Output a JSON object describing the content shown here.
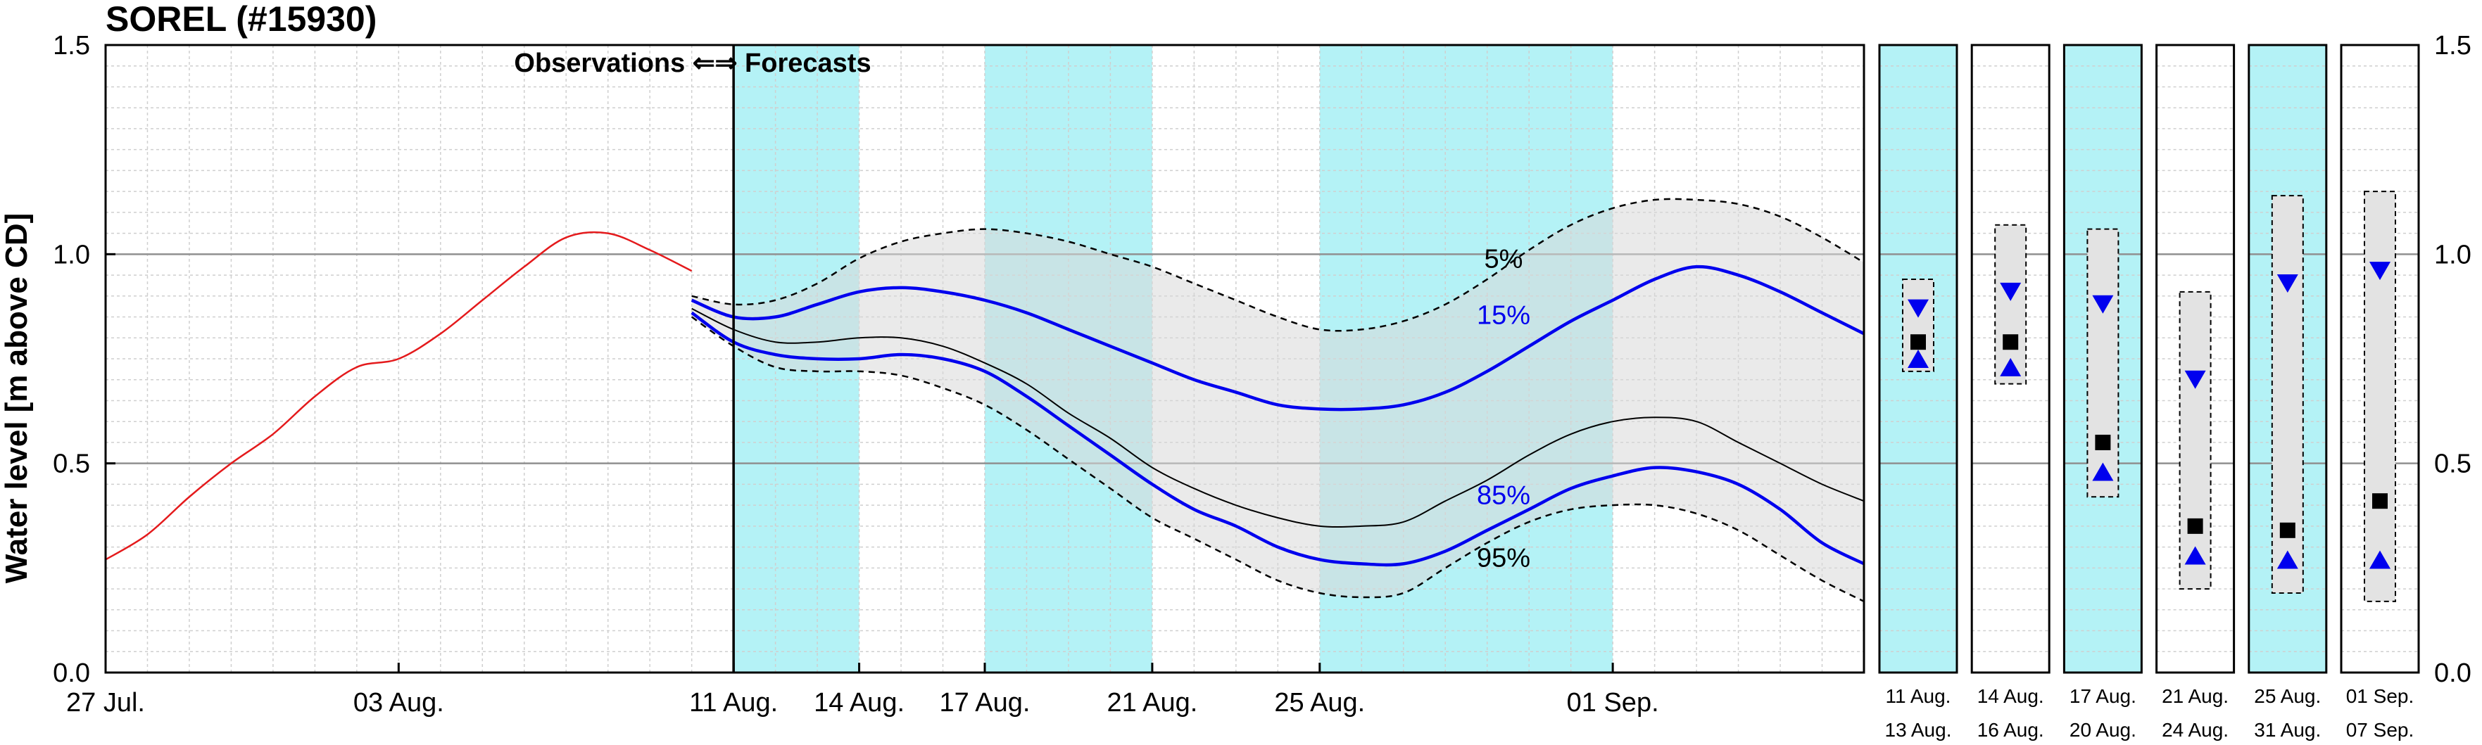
{
  "chart_data": {
    "type": "line",
    "title": "SOREL (#15930)",
    "ylabel": "Water level [m above CD]",
    "ylim": [
      0.0,
      1.5
    ],
    "yticks": [
      "0.0",
      "0.5",
      "1.0",
      "1.5"
    ],
    "x_start": "2024-07-27",
    "x_end": "2024-09-07",
    "xtick_labels": [
      {
        "date": "2024-07-27",
        "label": "27 Jul."
      },
      {
        "date": "2024-08-03",
        "label": "03 Aug."
      },
      {
        "date": "2024-08-11",
        "label": "11 Aug."
      },
      {
        "date": "2024-08-14",
        "label": "14 Aug."
      },
      {
        "date": "2024-08-17",
        "label": "17 Aug."
      },
      {
        "date": "2024-08-21",
        "label": "21 Aug."
      },
      {
        "date": "2024-08-25",
        "label": "25 Aug."
      },
      {
        "date": "2024-09-01",
        "label": "01 Sep."
      }
    ],
    "split_date": "2024-08-11",
    "split_label": "Observations ⇐⇒ Forecasts",
    "shaded_bands": [
      {
        "start": "2024-08-11",
        "end": "2024-08-14"
      },
      {
        "start": "2024-08-17",
        "end": "2024-08-21"
      },
      {
        "start": "2024-08-25",
        "end": "2024-09-01"
      }
    ],
    "band_color": "#b4f2f6",
    "grid": true,
    "observations": {
      "color": "#e41a1c",
      "x": [
        "2024-07-27",
        "2024-07-28",
        "2024-07-29",
        "2024-07-30",
        "2024-07-31",
        "2024-08-01",
        "2024-08-02",
        "2024-08-03",
        "2024-08-04",
        "2024-08-05",
        "2024-08-06",
        "2024-08-07",
        "2024-08-08",
        "2024-08-09",
        "2024-08-10"
      ],
      "y": [
        0.27,
        0.33,
        0.42,
        0.5,
        0.57,
        0.66,
        0.73,
        0.75,
        0.81,
        0.89,
        0.97,
        1.04,
        1.05,
        1.01,
        0.96
      ]
    },
    "forecast_x": [
      "2024-08-10",
      "2024-08-11",
      "2024-08-12",
      "2024-08-13",
      "2024-08-14",
      "2024-08-15",
      "2024-08-16",
      "2024-08-17",
      "2024-08-18",
      "2024-08-19",
      "2024-08-20",
      "2024-08-21",
      "2024-08-22",
      "2024-08-23",
      "2024-08-24",
      "2024-08-25",
      "2024-08-26",
      "2024-08-27",
      "2024-08-28",
      "2024-08-29",
      "2024-08-30",
      "2024-08-31",
      "2024-09-01",
      "2024-09-02",
      "2024-09-03",
      "2024-09-04",
      "2024-09-05",
      "2024-09-06",
      "2024-09-07"
    ],
    "series": [
      {
        "name": "5%",
        "style": "dashed",
        "color": "#000000",
        "values": [
          0.9,
          0.88,
          0.89,
          0.93,
          0.99,
          1.03,
          1.05,
          1.06,
          1.05,
          1.03,
          1.0,
          0.97,
          0.93,
          0.89,
          0.85,
          0.82,
          0.82,
          0.84,
          0.88,
          0.94,
          1.01,
          1.07,
          1.11,
          1.13,
          1.13,
          1.12,
          1.09,
          1.04,
          0.98
        ]
      },
      {
        "name": "15%",
        "style": "solid",
        "color": "#0000ee",
        "values": [
          0.89,
          0.85,
          0.85,
          0.88,
          0.91,
          0.92,
          0.91,
          0.89,
          0.86,
          0.82,
          0.78,
          0.74,
          0.7,
          0.67,
          0.64,
          0.63,
          0.63,
          0.64,
          0.67,
          0.72,
          0.78,
          0.84,
          0.89,
          0.94,
          0.97,
          0.95,
          0.91,
          0.86,
          0.81
        ]
      },
      {
        "name": "",
        "style": "solid",
        "color": "#000000",
        "values": [
          0.87,
          0.82,
          0.79,
          0.79,
          0.8,
          0.8,
          0.78,
          0.74,
          0.69,
          0.62,
          0.56,
          0.49,
          0.44,
          0.4,
          0.37,
          0.35,
          0.35,
          0.36,
          0.41,
          0.46,
          0.52,
          0.57,
          0.6,
          0.61,
          0.6,
          0.55,
          0.5,
          0.45,
          0.41
        ]
      },
      {
        "name": "85%",
        "style": "solid",
        "color": "#0000ee",
        "values": [
          0.86,
          0.79,
          0.76,
          0.75,
          0.75,
          0.76,
          0.75,
          0.72,
          0.66,
          0.59,
          0.52,
          0.45,
          0.39,
          0.35,
          0.3,
          0.27,
          0.26,
          0.26,
          0.29,
          0.34,
          0.39,
          0.44,
          0.47,
          0.49,
          0.48,
          0.45,
          0.39,
          0.31,
          0.26
        ]
      },
      {
        "name": "95%",
        "style": "dashed",
        "color": "#000000",
        "values": [
          0.85,
          0.78,
          0.73,
          0.72,
          0.72,
          0.71,
          0.68,
          0.64,
          0.58,
          0.51,
          0.44,
          0.37,
          0.32,
          0.27,
          0.22,
          0.19,
          0.18,
          0.19,
          0.25,
          0.31,
          0.36,
          0.39,
          0.4,
          0.4,
          0.38,
          0.34,
          0.28,
          0.22,
          0.17
        ]
      }
    ],
    "panels": [
      {
        "top_label": "11 Aug.",
        "bottom_label": "13 Aug.",
        "shaded": true,
        "box": [
          0.72,
          0.94
        ],
        "down": 0.87,
        "square": 0.79,
        "up": 0.75
      },
      {
        "top_label": "14 Aug.",
        "bottom_label": "16 Aug.",
        "shaded": false,
        "box": [
          0.69,
          1.07
        ],
        "down": 0.91,
        "square": 0.79,
        "up": 0.73
      },
      {
        "top_label": "17 Aug.",
        "bottom_label": "20 Aug.",
        "shaded": true,
        "box": [
          0.42,
          1.06
        ],
        "down": 0.88,
        "square": 0.55,
        "up": 0.48
      },
      {
        "top_label": "21 Aug.",
        "bottom_label": "24 Aug.",
        "shaded": false,
        "box": [
          0.2,
          0.91
        ],
        "down": 0.7,
        "square": 0.35,
        "up": 0.28
      },
      {
        "top_label": "25 Aug.",
        "bottom_label": "31 Aug.",
        "shaded": true,
        "box": [
          0.19,
          1.14
        ],
        "down": 0.93,
        "square": 0.34,
        "up": 0.27
      },
      {
        "top_label": "01 Sep.",
        "bottom_label": "07 Sep.",
        "shaded": false,
        "box": [
          0.17,
          1.15
        ],
        "down": 0.96,
        "square": 0.41,
        "up": 0.27
      }
    ]
  }
}
